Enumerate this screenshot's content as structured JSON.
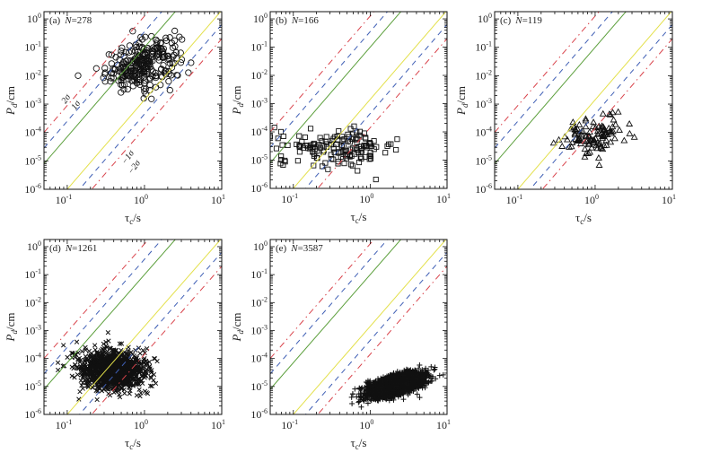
{
  "chart_data": {
    "type": "scatter",
    "xscale": "log",
    "yscale": "log",
    "xlim": [
      0.05,
      10
    ],
    "ylim": [
      1e-06,
      1.8
    ],
    "xticks": [
      {
        "base": "10",
        "exp": "-1",
        "value": 0.1
      },
      {
        "base": "10",
        "exp": "0",
        "value": 1
      },
      {
        "base": "10",
        "exp": "1",
        "value": 10
      }
    ],
    "yticks": [
      {
        "base": "10",
        "exp": "-6",
        "value": 1e-06
      },
      {
        "base": "10",
        "exp": "-5",
        "value": 1e-05
      },
      {
        "base": "10",
        "exp": "-4",
        "value": 0.0001
      },
      {
        "base": "10",
        "exp": "-3",
        "value": 0.001
      },
      {
        "base": "10",
        "exp": "-2",
        "value": 0.01
      },
      {
        "base": "10",
        "exp": "-1",
        "value": 0.1
      },
      {
        "base": "10",
        "exp": "0",
        "value": 1
      }
    ],
    "xlabel": {
      "main": "τ",
      "sub": "c",
      "rest": "/s"
    },
    "ylabel": {
      "main": "P",
      "sub": "d",
      "rest": "/cm"
    },
    "reference_lines": {
      "slope": 3.15,
      "lines": [
        {
          "name": "+2σ",
          "intercept": 0.1,
          "color": "#d9434b",
          "style": "dashdot"
        },
        {
          "name": "+1σ",
          "intercept": -0.45,
          "color": "#3f5fb5",
          "style": "dashed"
        },
        {
          "name": "upper-fit",
          "intercept": -1.0,
          "color": "#5a9e3a",
          "style": "solid"
        },
        {
          "name": "lower-fit",
          "intercept": -2.85,
          "color": "#e3e04a",
          "style": "solid"
        },
        {
          "name": "-1σ",
          "intercept": -3.35,
          "color": "#3f5fb5",
          "style": "dashed"
        },
        {
          "name": "-2σ",
          "intercept": -3.85,
          "color": "#d9434b",
          "style": "dashdot"
        }
      ]
    },
    "sigma_labels": {
      "upper2": "2σ",
      "upper1": "1σ",
      "lower1": "−1σ",
      "lower2": "−2σ"
    },
    "panels": [
      {
        "id": "a",
        "tag": "(a)",
        "n_label": "N",
        "n_value": "278",
        "N": 278,
        "marker": "circle",
        "cloud": {
          "logx_mean": -0.02,
          "logx_sd": 0.24,
          "logy_mean": -1.6,
          "logy_sd": 0.45,
          "corr": 0.35
        }
      },
      {
        "id": "b",
        "tag": "(b)",
        "n_label": "N",
        "n_value": "166",
        "N": 166,
        "marker": "square",
        "cloud": {
          "logx_mean": -0.45,
          "logx_sd": 0.42,
          "logy_mean": -4.55,
          "logy_sd": 0.32,
          "corr": 0.0
        }
      },
      {
        "id": "c",
        "tag": "(c)",
        "n_label": "N",
        "n_value": "119",
        "N": 119,
        "marker": "triangle",
        "cloud": {
          "logx_mean": 0.0,
          "logx_sd": 0.2,
          "logy_mean": -4.1,
          "logy_sd": 0.35,
          "corr": 0.3
        }
      },
      {
        "id": "d",
        "tag": "(d)",
        "n_label": "N",
        "n_value": "1261",
        "N": 1261,
        "marker": "x",
        "cloud": {
          "logx_mean": -0.42,
          "logx_sd": 0.22,
          "logy_mean": -4.4,
          "logy_sd": 0.36,
          "corr": -0.1
        }
      },
      {
        "id": "e",
        "tag": "(e)",
        "n_label": "N",
        "n_value": "3587",
        "N": 3587,
        "marker": "plus",
        "cloud": {
          "logx_mean": 0.33,
          "logx_sd": 0.17,
          "logy_mean": -4.95,
          "logy_sd": 0.2,
          "corr": 0.6
        }
      }
    ]
  }
}
